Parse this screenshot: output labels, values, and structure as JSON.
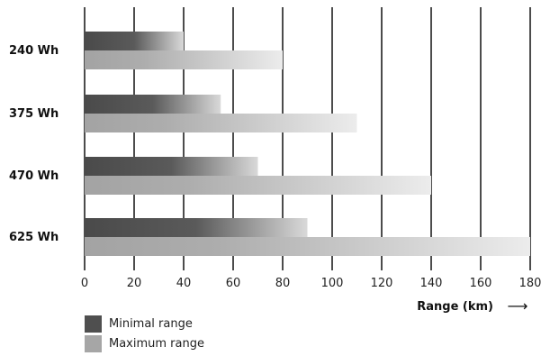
{
  "chart_data": {
    "type": "bar",
    "orientation": "horizontal",
    "categories": [
      "240 Wh",
      "375 Wh",
      "470 Wh",
      "625 Wh"
    ],
    "series": [
      {
        "name": "Minimal range",
        "values": [
          40,
          55,
          70,
          90
        ],
        "color": "#4f4f4f"
      },
      {
        "name": "Maximum range",
        "values": [
          80,
          110,
          140,
          180
        ],
        "color": "#a6a6a6"
      }
    ],
    "xlabel": "Range (km)",
    "xlabel_arrow": "⟶",
    "xlim": [
      0,
      180
    ],
    "xticks": [
      "0",
      "20",
      "40",
      "60",
      "80",
      "100",
      "120",
      "140",
      "160",
      "180"
    ],
    "grid": true,
    "legend_position": "bottom-left"
  }
}
